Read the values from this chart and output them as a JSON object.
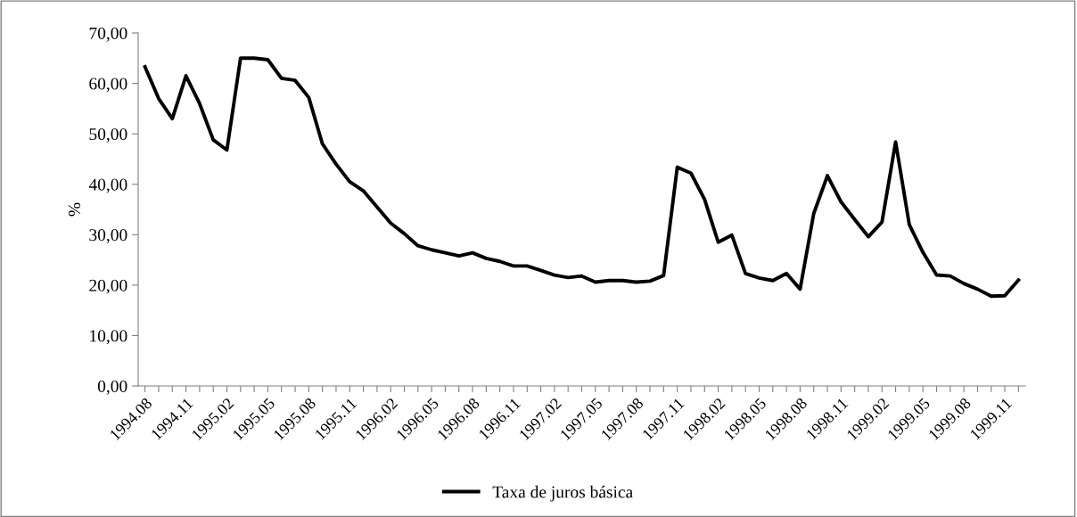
{
  "chart_data": {
    "type": "line",
    "ylabel": "%",
    "categories": [
      "1994.08",
      null,
      null,
      "1994.11",
      null,
      null,
      "1995.02",
      null,
      null,
      "1995.05",
      null,
      null,
      "1995.08",
      null,
      null,
      "1995.11",
      null,
      null,
      "1996.02",
      null,
      null,
      "1996.05",
      null,
      null,
      "1996.08",
      null,
      null,
      "1996.11",
      null,
      null,
      "1997.02",
      null,
      null,
      "1997.05",
      null,
      null,
      "1997.08",
      null,
      null,
      "1997.11",
      null,
      null,
      "1998.02",
      null,
      null,
      "1998.05",
      null,
      null,
      "1998.08",
      null,
      null,
      "1998.11",
      null,
      null,
      "1999.02",
      null,
      null,
      "1999.05",
      null,
      null,
      "1999.08",
      null,
      null,
      "1999.11",
      null
    ],
    "series": [
      {
        "name": "Taxa de juros básica",
        "color": "#000000",
        "values": [
          63.3,
          57,
          53,
          61.5,
          56,
          48.8,
          46.8,
          65,
          65,
          64.7,
          61,
          60.6,
          57.2,
          48,
          44,
          40.5,
          38.7,
          35.5,
          32.3,
          30.2,
          27.8,
          27,
          26.4,
          25.8,
          26.4,
          25.3,
          24.7,
          23.8,
          23.8,
          22.9,
          22,
          21.5,
          21.8,
          20.6,
          20.9,
          20.9,
          20.6,
          20.8,
          21.9,
          43.4,
          42.2,
          37,
          28.5,
          29.9,
          22.3,
          21.4,
          20.9,
          22.3,
          19.2,
          34.2,
          41.7,
          36.5,
          33,
          29.6,
          32.5,
          48.4,
          32,
          26.5,
          22,
          21.8,
          20.3,
          19.2,
          17.8,
          17.9,
          21
        ]
      }
    ],
    "ylim": [
      0,
      70
    ],
    "yticks": [
      {
        "value": 0,
        "label": "0,00"
      },
      {
        "value": 10,
        "label": "10,00"
      },
      {
        "value": 20,
        "label": "20,00"
      },
      {
        "value": 30,
        "label": "30,00"
      },
      {
        "value": 40,
        "label": "40,00"
      },
      {
        "value": 50,
        "label": "50,00"
      },
      {
        "value": 60,
        "label": "60,00"
      },
      {
        "value": 70,
        "label": "70,00"
      }
    ],
    "grid": false,
    "legend": "bottom",
    "marker": "none",
    "line_style": "solid"
  }
}
